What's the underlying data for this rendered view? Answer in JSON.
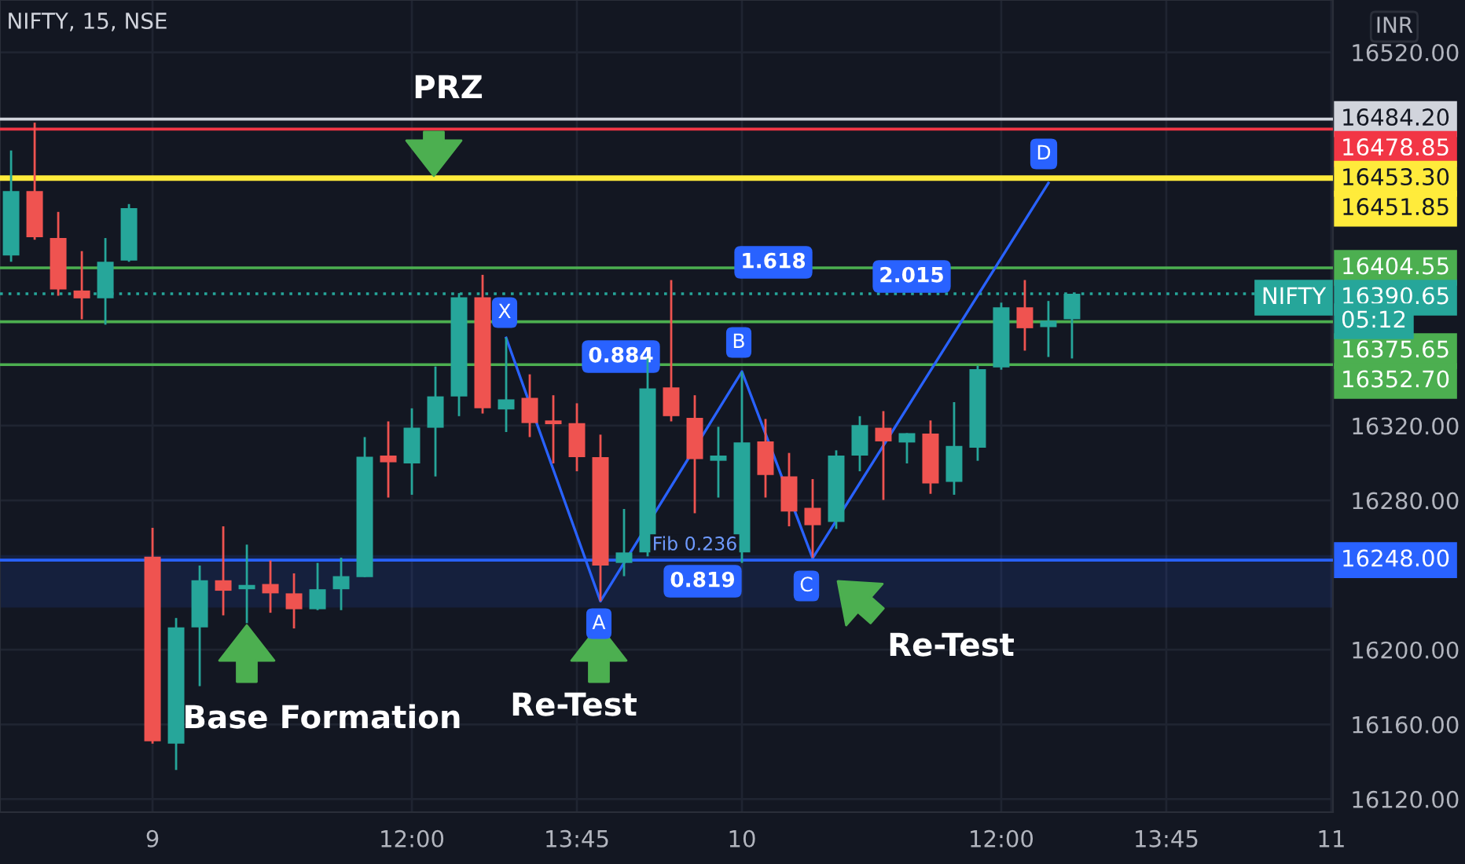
{
  "chart_data": {
    "type": "candlestick",
    "title": "NIFTY, 15, NSE",
    "categories": [
      null,
      null,
      null,
      null,
      null,
      null,
      "9",
      null,
      null,
      null,
      null,
      null,
      null,
      null,
      null,
      null,
      null,
      "12:00",
      null,
      null,
      null,
      null,
      null,
      null,
      "13:45",
      null,
      null,
      null,
      null,
      null,
      null,
      "10",
      null,
      null,
      null,
      null,
      null,
      null,
      null,
      null,
      null,
      null,
      "12:00",
      null,
      null,
      null,
      null,
      null,
      null,
      "13:45",
      null,
      null,
      null,
      null,
      null,
      null,
      "11"
    ],
    "ohlc": [
      [
        16411.2,
        16467.4,
        16407.8,
        16445.7
      ],
      [
        16445.7,
        16482.3,
        16419.6,
        16421.0
      ],
      [
        16420.5,
        16434.5,
        16389.6,
        16393.0
      ],
      [
        16392.4,
        16413.5,
        16377.0,
        16388.2
      ],
      [
        16388.2,
        16420.5,
        16374.1,
        16407.8
      ],
      [
        16408.4,
        16438.7,
        16407.8,
        16436.5
      ],
      [
        16249.8,
        16265.3,
        16149.7,
        16151.0
      ],
      [
        16149.7,
        16217.0,
        16135.6,
        16212.0
      ],
      [
        16212.0,
        16245.1,
        16180.5,
        16237.2
      ],
      [
        16237.2,
        16266.1,
        16218.4,
        16231.6
      ],
      [
        16232.4,
        16256.3,
        16214.2,
        16234.7
      ],
      [
        16235.2,
        16247.8,
        16219.8,
        16230.2
      ],
      [
        16230.2,
        16240.9,
        16211.4,
        16221.7
      ],
      [
        16221.7,
        16246.5,
        16221.2,
        16232.4
      ],
      [
        16232.4,
        16249.3,
        16221.2,
        16239.4
      ],
      [
        16238.9,
        16313.9,
        16238.9,
        16303.4
      ],
      [
        16304.0,
        16322.3,
        16281.5,
        16300.4
      ],
      [
        16299.8,
        16329.3,
        16283.0,
        16318.9
      ],
      [
        16318.9,
        16351.7,
        16292.8,
        16335.7
      ],
      [
        16335.7,
        16391.0,
        16325.1,
        16388.8
      ],
      [
        16388.8,
        16400.8,
        16326.5,
        16329.3
      ],
      [
        16328.7,
        16367.2,
        16316.6,
        16334.1
      ],
      [
        16334.9,
        16347.5,
        16313.9,
        16321.4
      ],
      [
        16322.8,
        16336.3,
        16299.8,
        16320.8
      ],
      [
        16321.4,
        16332.0,
        16295.6,
        16303.2
      ],
      [
        16303.2,
        16315.2,
        16226.0,
        16245.1
      ],
      [
        16246.5,
        16275.4,
        16239.4,
        16252.1
      ],
      [
        16252.1,
        16356.0,
        16250.0,
        16340.0
      ],
      [
        16340.5,
        16398.0,
        16322.3,
        16325.1
      ],
      [
        16324.2,
        16336.3,
        16273.1,
        16302.1
      ],
      [
        16301.2,
        16319.4,
        16281.5,
        16304.0
      ],
      [
        16252.1,
        16348.9,
        16246.5,
        16311.0
      ],
      [
        16311.6,
        16323.6,
        16281.5,
        16293.6
      ],
      [
        16292.8,
        16305.4,
        16266.1,
        16274.0
      ],
      [
        16276.0,
        16291.4,
        16249.3,
        16266.7
      ],
      [
        16268.4,
        16306.8,
        16264.7,
        16304.0
      ],
      [
        16304.0,
        16325.1,
        16295.6,
        16320.3
      ],
      [
        16318.9,
        16327.8,
        16280.2,
        16311.6
      ],
      [
        16311.0,
        16316.0,
        16299.8,
        16316.0
      ],
      [
        16315.8,
        16322.8,
        16283.5,
        16289.1
      ],
      [
        16289.9,
        16332.6,
        16283.0,
        16309.1
      ],
      [
        16308.2,
        16352.2,
        16301.2,
        16350.3
      ],
      [
        16351.2,
        16385.9,
        16350.0,
        16383.4
      ],
      [
        16383.4,
        16398.0,
        16360.2,
        16372.2
      ],
      [
        16372.8,
        16386.8,
        16356.8,
        16376.2
      ],
      [
        16377.0,
        16390.65,
        16356.0,
        16390.65
      ],
      null,
      null,
      null,
      null,
      null,
      null,
      null,
      null,
      null,
      null,
      null
    ],
    "series": [
      {
        "type": "line",
        "color": "#2962ff",
        "values": [
          null,
          null,
          null,
          null,
          null,
          null,
          null,
          null,
          null,
          null,
          null,
          null,
          null,
          null,
          null,
          null,
          null,
          null,
          null,
          null,
          null,
          16367,
          null,
          null,
          null,
          16226,
          null,
          null,
          null,
          null,
          null,
          16349,
          null,
          null,
          16249,
          null,
          null,
          null,
          null,
          null,
          null,
          null,
          null,
          null,
          16450,
          null,
          null,
          null,
          null,
          null,
          null,
          null,
          null,
          null,
          null,
          null,
          null
        ]
      }
    ],
    "ref_lines": [
      {
        "axis": "y",
        "value": 16484.2,
        "label": "16484.20",
        "color": "#d1d4dc",
        "line_style": "solid"
      },
      {
        "axis": "y",
        "value": 16478.85,
        "label": "16478.85",
        "color": "#f23645",
        "line_style": "solid"
      },
      {
        "axis": "y",
        "value": 16453.3,
        "label": "16453.30",
        "color": "#ffeb3b",
        "line_style": "solid"
      },
      {
        "axis": "y",
        "value": 16451.85,
        "label": "16451.85",
        "color": "#ffeb3b",
        "line_style": "solid"
      },
      {
        "axis": "y",
        "value": 16404.55,
        "label": "16404.55",
        "color": "#4caf50",
        "line_style": "solid"
      },
      {
        "axis": "y",
        "value": 16390.65,
        "label": "16390.65",
        "color": "#26a69a",
        "line_style": "dotted"
      },
      {
        "axis": "y",
        "value": 16375.65,
        "label": "16375.65",
        "color": "#4caf50",
        "line_style": "solid"
      },
      {
        "axis": "y",
        "value": 16352.7,
        "label": "16352.70",
        "color": "#4caf50",
        "line_style": "solid"
      },
      {
        "axis": "y",
        "value": 16248.0,
        "label": "16248.00",
        "color": "#2962ff",
        "line_style": "solid"
      }
    ],
    "bands": [
      {
        "axis": "y",
        "from": 16223.2,
        "to": 16250.1,
        "color": "#2962ff"
      }
    ],
    "annotations": [
      "PRZ",
      "Base Formation",
      "Re-Test",
      "Re-Test",
      "X",
      "A",
      "B",
      "C",
      "D",
      "1.618",
      "0.884",
      "2.015",
      "0.819",
      "Fib 0.236",
      "INR",
      "NIFTY",
      "05:12"
    ],
    "ylim": [
      16113,
      16548
    ],
    "yticks": [
      {
        "value": 16120,
        "label": "16120.00"
      },
      {
        "value": 16160,
        "label": "16160.00"
      },
      {
        "value": 16200,
        "label": "16200.00"
      },
      {
        "value": 16280,
        "label": "16280.00"
      },
      {
        "value": 16320,
        "label": "16320.00"
      },
      {
        "value": 16520,
        "label": "16520.00"
      }
    ],
    "grid": true,
    "legend": false
  }
}
